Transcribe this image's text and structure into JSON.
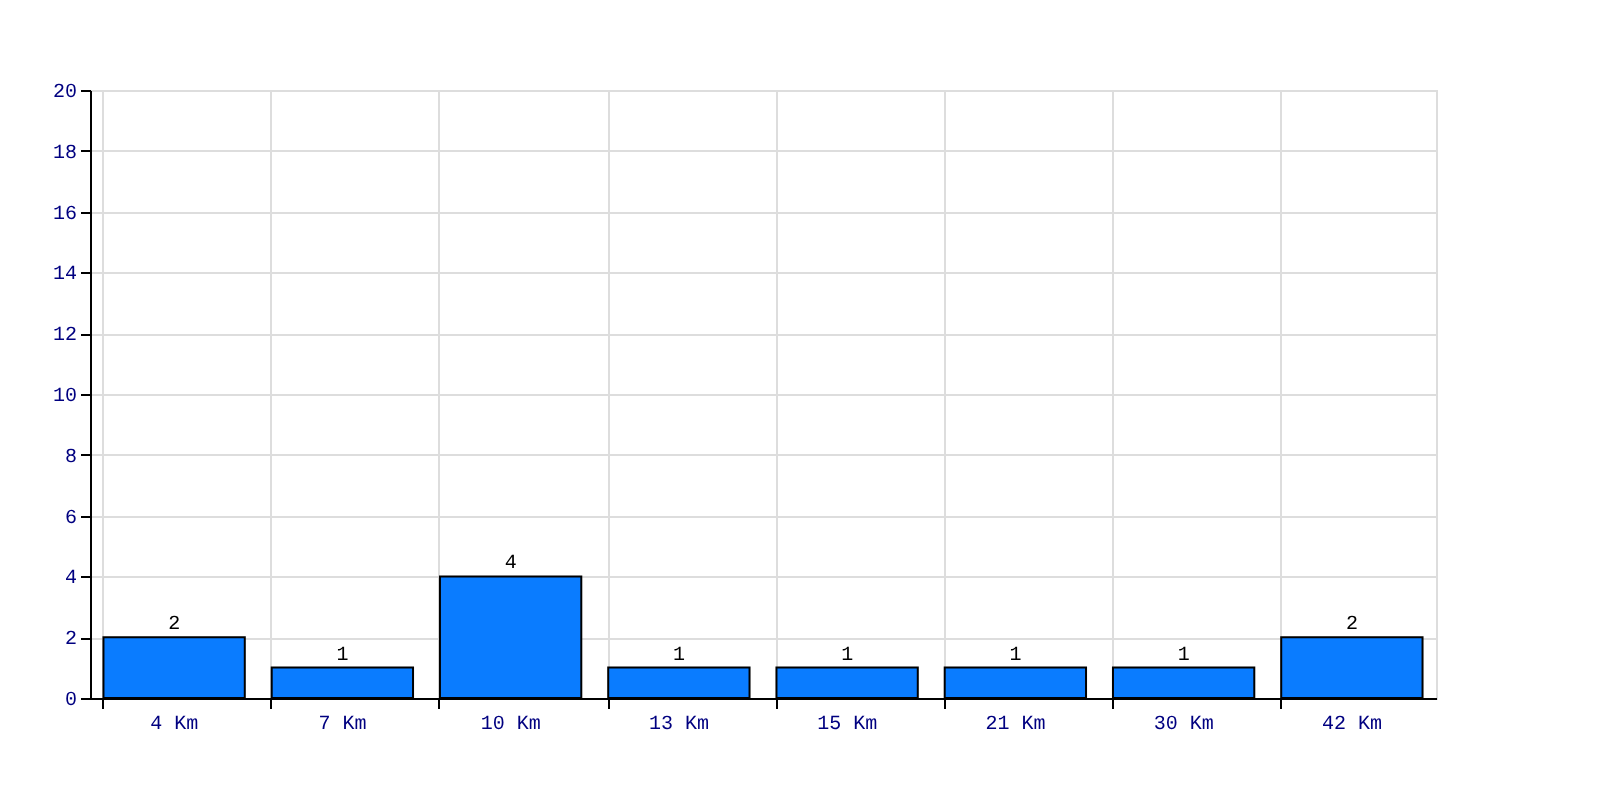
{
  "chart_data": {
    "type": "bar",
    "categories": [
      "4 Km",
      "7 Km",
      "10 Km",
      "13 Km",
      "15 Km",
      "21 Km",
      "30 Km",
      "42 Km"
    ],
    "values": [
      2,
      1,
      4,
      1,
      1,
      1,
      1,
      2
    ],
    "color": "#0a7cff",
    "ylim": [
      0,
      20
    ],
    "yticks": [
      0,
      2,
      4,
      6,
      8,
      10,
      12,
      14,
      16,
      18,
      20
    ],
    "grid": true,
    "data_labels": true
  }
}
